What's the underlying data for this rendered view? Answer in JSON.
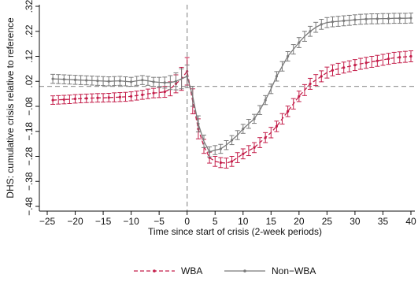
{
  "chart_data": {
    "type": "line",
    "title": "",
    "xlabel": "Time since start of crisis (2-week periods)",
    "ylabel": "DHS: cumulative crisis relative to reference",
    "xlim": [
      -25,
      40
    ],
    "ylim": [
      -0.48,
      0.32
    ],
    "xticks": [
      "−25",
      "−20",
      "−15",
      "−10",
      "−5",
      "0",
      "5",
      "10",
      "15",
      "20",
      "25",
      "30",
      "35",
      "40"
    ],
    "xtick_values": [
      -25,
      -20,
      -15,
      -10,
      -5,
      0,
      5,
      10,
      15,
      20,
      25,
      30,
      35,
      40
    ],
    "yticks": [
      "−.48",
      "−.38",
      "−.28",
      "−.18",
      "−.08",
      ".02",
      ".12",
      ".22",
      ".32"
    ],
    "ytick_values": [
      -0.48,
      -0.38,
      -0.28,
      -0.18,
      -0.08,
      0.02,
      0.12,
      0.22,
      0.32
    ],
    "reference_lines": {
      "x": 0,
      "y": 0
    },
    "grid": false,
    "legend_position": "bottom",
    "series": [
      {
        "name": "WBA",
        "color": "#c41e4a",
        "style": "dashed",
        "x": [
          -24,
          -23,
          -22,
          -21,
          -20,
          -19,
          -18,
          -17,
          -16,
          -15,
          -14,
          -13,
          -12,
          -11,
          -10,
          -9,
          -8,
          -7,
          -6,
          -5,
          -4,
          -3,
          -2,
          -1,
          0,
          1,
          2,
          3,
          4,
          5,
          6,
          7,
          8,
          9,
          10,
          11,
          12,
          13,
          14,
          15,
          16,
          17,
          18,
          19,
          20,
          21,
          22,
          23,
          24,
          25,
          26,
          27,
          28,
          29,
          30,
          31,
          32,
          33,
          34,
          35,
          36,
          37,
          38,
          39,
          40
        ],
        "y": [
          -0.055,
          -0.054,
          -0.053,
          -0.052,
          -0.05,
          -0.049,
          -0.048,
          -0.047,
          -0.046,
          -0.046,
          -0.045,
          -0.044,
          -0.043,
          -0.042,
          -0.04,
          -0.037,
          -0.034,
          -0.03,
          -0.027,
          -0.025,
          -0.022,
          -0.01,
          0.01,
          0.03,
          0.06,
          -0.06,
          -0.17,
          -0.24,
          -0.285,
          -0.3,
          -0.305,
          -0.307,
          -0.3,
          -0.285,
          -0.27,
          -0.257,
          -0.245,
          -0.225,
          -0.205,
          -0.185,
          -0.16,
          -0.13,
          -0.1,
          -0.07,
          -0.04,
          -0.015,
          0.01,
          0.025,
          0.04,
          0.055,
          0.064,
          0.07,
          0.075,
          0.08,
          0.085,
          0.09,
          0.094,
          0.098,
          0.102,
          0.106,
          0.11,
          0.114,
          0.116,
          0.118,
          0.12
        ],
        "err": [
          0.017,
          0.017,
          0.017,
          0.017,
          0.017,
          0.017,
          0.017,
          0.017,
          0.017,
          0.017,
          0.017,
          0.018,
          0.018,
          0.018,
          0.018,
          0.018,
          0.018,
          0.019,
          0.019,
          0.02,
          0.022,
          0.028,
          0.036,
          0.046,
          0.055,
          0.05,
          0.04,
          0.028,
          0.022,
          0.02,
          0.02,
          0.02,
          0.02,
          0.02,
          0.02,
          0.02,
          0.02,
          0.02,
          0.02,
          0.021,
          0.021,
          0.021,
          0.021,
          0.021,
          0.021,
          0.022,
          0.022,
          0.022,
          0.022,
          0.022,
          0.022,
          0.022,
          0.022,
          0.022,
          0.022,
          0.022,
          0.022,
          0.022,
          0.022,
          0.022,
          0.022,
          0.022,
          0.022,
          0.022,
          0.022
        ],
        "marker_every": 2
      },
      {
        "name": "Non−WBA",
        "color": "#7a7a7a",
        "style": "solid",
        "x": [
          -24,
          -23,
          -22,
          -21,
          -20,
          -19,
          -18,
          -17,
          -16,
          -15,
          -14,
          -13,
          -12,
          -11,
          -10,
          -9,
          -8,
          -7,
          -6,
          -5,
          -4,
          -3,
          -2,
          -1,
          0,
          1,
          2,
          3,
          4,
          5,
          6,
          7,
          8,
          9,
          10,
          11,
          12,
          13,
          14,
          15,
          16,
          17,
          18,
          19,
          20,
          21,
          22,
          23,
          24,
          25,
          26,
          27,
          28,
          29,
          30,
          31,
          32,
          33,
          34,
          35,
          36,
          37,
          38,
          39,
          40
        ],
        "y": [
          0.03,
          0.029,
          0.028,
          0.027,
          0.026,
          0.025,
          0.024,
          0.023,
          0.022,
          0.021,
          0.02,
          0.021,
          0.022,
          0.02,
          0.018,
          0.022,
          0.025,
          0.022,
          0.018,
          0.016,
          0.015,
          0.015,
          0.02,
          0.03,
          0.04,
          -0.04,
          -0.15,
          -0.22,
          -0.262,
          -0.255,
          -0.25,
          -0.235,
          -0.215,
          -0.195,
          -0.17,
          -0.15,
          -0.13,
          -0.095,
          -0.055,
          -0.01,
          0.04,
          0.08,
          0.12,
          0.148,
          0.175,
          0.2,
          0.22,
          0.236,
          0.248,
          0.255,
          0.258,
          0.26,
          0.262,
          0.264,
          0.266,
          0.268,
          0.269,
          0.27,
          0.27,
          0.271,
          0.271,
          0.272,
          0.272,
          0.272,
          0.273
        ],
        "err": [
          0.018,
          0.018,
          0.018,
          0.018,
          0.018,
          0.018,
          0.018,
          0.018,
          0.018,
          0.018,
          0.018,
          0.018,
          0.018,
          0.018,
          0.018,
          0.018,
          0.018,
          0.018,
          0.018,
          0.02,
          0.022,
          0.028,
          0.034,
          0.04,
          0.045,
          0.04,
          0.032,
          0.025,
          0.02,
          0.018,
          0.018,
          0.018,
          0.018,
          0.018,
          0.018,
          0.018,
          0.018,
          0.018,
          0.018,
          0.019,
          0.019,
          0.019,
          0.019,
          0.019,
          0.02,
          0.02,
          0.02,
          0.02,
          0.02,
          0.02,
          0.02,
          0.02,
          0.02,
          0.02,
          0.02,
          0.02,
          0.02,
          0.02,
          0.02,
          0.02,
          0.02,
          0.02,
          0.02,
          0.02,
          0.02
        ],
        "marker_every": 2
      }
    ]
  }
}
